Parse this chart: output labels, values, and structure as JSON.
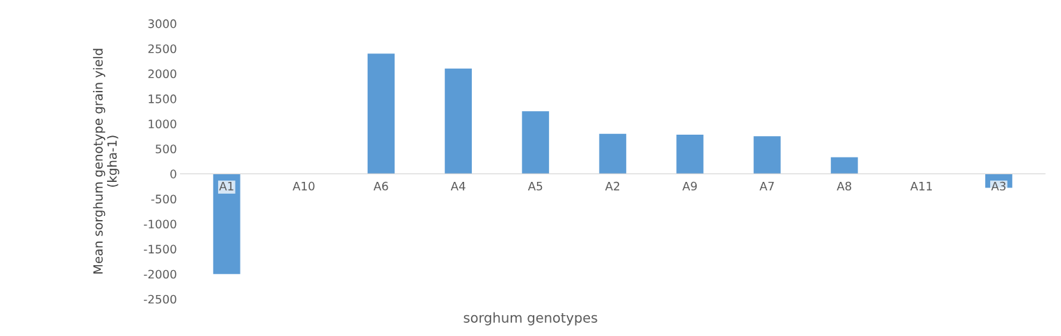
{
  "chart_data": {
    "type": "bar",
    "xlabel": "sorghum genotypes",
    "ylabel": "Mean sorghum genotype grain yield\n(kgha-1)",
    "categories": [
      "A1",
      "A10",
      "A6",
      "A4",
      "A5",
      "A2",
      "A9",
      "A7",
      "A8",
      "A11",
      "A3"
    ],
    "values": [
      -2000,
      0,
      2400,
      2100,
      1250,
      800,
      780,
      750,
      330,
      0,
      -280
    ],
    "color": "#5b9bd5",
    "ylim": [
      -2500,
      3000
    ],
    "yticks": [
      -2500,
      -2000,
      -1500,
      -1000,
      -500,
      0,
      500,
      1000,
      1500,
      2000,
      2500,
      3000
    ],
    "grid": false,
    "legend": false
  }
}
